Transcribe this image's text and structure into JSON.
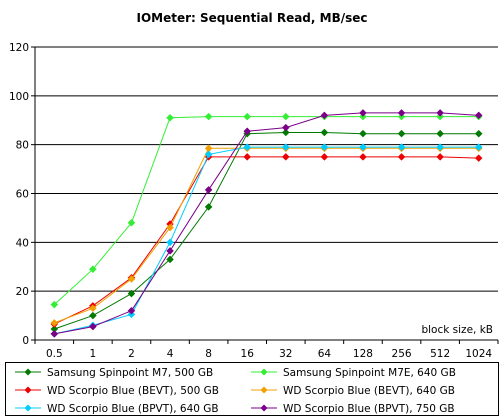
{
  "chart_data": {
    "type": "line",
    "title": "IOMeter: Sequential Read, MB/sec",
    "xlabel": "block size, kB",
    "ylabel": "",
    "categories": [
      "0.5",
      "1",
      "2",
      "4",
      "8",
      "16",
      "32",
      "64",
      "128",
      "256",
      "512",
      "1024"
    ],
    "ylim": [
      0,
      120
    ],
    "yticks": [
      "0",
      "20",
      "40",
      "60",
      "80",
      "100",
      "120"
    ],
    "grid": "horizontal",
    "legend_position": "bottom",
    "series": [
      {
        "name": "Samsung Spinpoint M7, 500 GB",
        "color": "#007a00",
        "values": [
          4.5,
          10,
          19,
          33,
          54.5,
          84.5,
          85,
          85,
          84.5,
          84.5,
          84.5,
          84.5
        ]
      },
      {
        "name": "Samsung Spinpoint M7E, 640 GB",
        "color": "#33ee33",
        "values": [
          14.5,
          29,
          48,
          91,
          91.5,
          91.5,
          91.5,
          91.5,
          91.5,
          91.5,
          91.5,
          91.5
        ]
      },
      {
        "name": "WD Scorpio Blue (BEVT), 500 GB",
        "color": "#ee0000",
        "values": [
          6.5,
          14,
          25.5,
          47.5,
          75,
          75,
          75,
          75,
          75,
          75,
          75,
          74.5
        ]
      },
      {
        "name": "WD Scorpio Blue (BEVT), 640 GB",
        "color": "#f0a000",
        "values": [
          7,
          13,
          25,
          46,
          78.5,
          78.5,
          78.5,
          78.5,
          78.5,
          78.5,
          78.5,
          78.5
        ]
      },
      {
        "name": "WD Scorpio Blue (BPVT), 640 GB",
        "color": "#00ccff",
        "values": [
          2.5,
          6,
          10.5,
          40,
          76,
          79,
          79,
          79,
          79,
          79,
          79,
          79
        ]
      },
      {
        "name": "WD Scorpio Blue (BPVT), 750 GB",
        "color": "#7a0088",
        "values": [
          2.5,
          5.5,
          12,
          36.5,
          61.5,
          85.5,
          87,
          92,
          93,
          93,
          93,
          92
        ]
      }
    ]
  }
}
